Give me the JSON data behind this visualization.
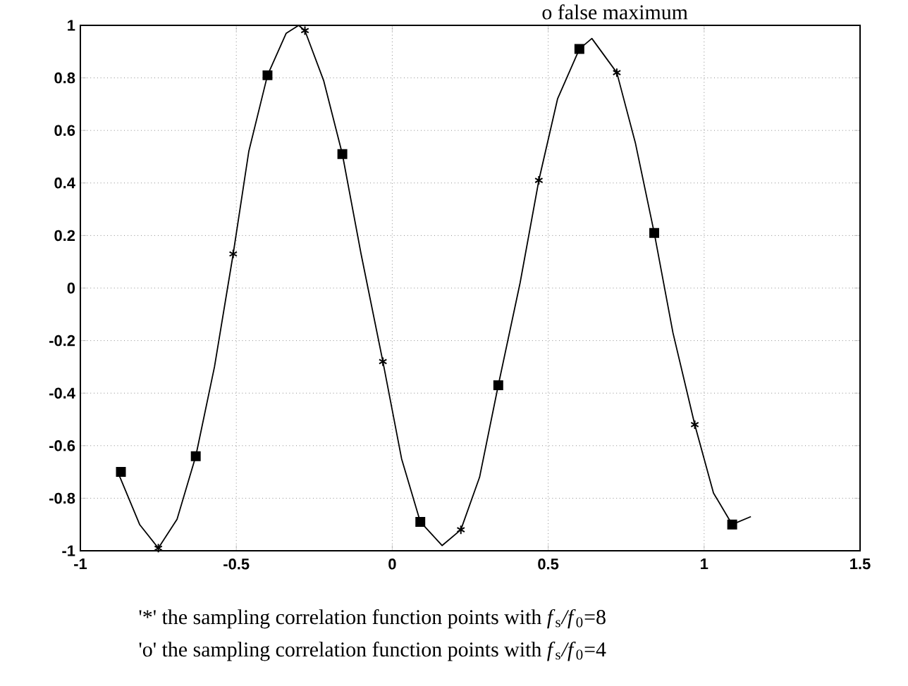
{
  "chart_data": {
    "type": "scatter",
    "xlim": [
      -1,
      1.5
    ],
    "ylim": [
      -1,
      1
    ],
    "xticks": [
      -1,
      -0.5,
      0,
      0.5,
      1,
      1.5
    ],
    "yticks": [
      -1,
      -0.8,
      -0.6,
      -0.4,
      -0.2,
      0,
      0.2,
      0.4,
      0.6,
      0.8,
      1
    ],
    "grid": true,
    "series": [
      {
        "type": "line",
        "color": "#000000",
        "marker": "none",
        "line_style": "solid",
        "x": [
          -0.88,
          -0.81,
          -0.75,
          -0.69,
          -0.63,
          -0.57,
          -0.51,
          -0.46,
          -0.4,
          -0.34,
          -0.3,
          -0.28,
          -0.22,
          -0.16,
          -0.1,
          -0.03,
          0.03,
          0.09,
          0.16,
          0.22,
          0.28,
          0.34,
          0.41,
          0.47,
          0.53,
          0.6,
          0.64,
          0.72,
          0.78,
          0.84,
          0.9,
          0.97,
          1.03,
          1.09,
          1.15
        ],
        "values": [
          -0.7,
          -0.9,
          -0.99,
          -0.88,
          -0.64,
          -0.3,
          0.13,
          0.52,
          0.81,
          0.97,
          1.0,
          0.98,
          0.79,
          0.51,
          0.13,
          -0.28,
          -0.65,
          -0.89,
          -0.98,
          -0.92,
          -0.72,
          -0.37,
          0.02,
          0.41,
          0.72,
          0.91,
          0.95,
          0.82,
          0.55,
          0.21,
          -0.17,
          -0.52,
          -0.78,
          -0.9,
          -0.87
        ]
      },
      {
        "color": "#000000",
        "marker": "cross",
        "x": [
          -0.75,
          -0.51,
          -0.28,
          -0.03,
          0.22,
          0.47,
          0.72,
          0.97
        ],
        "values": [
          -0.99,
          0.13,
          0.98,
          -0.28,
          -0.92,
          0.41,
          0.82,
          -0.52
        ]
      },
      {
        "color": "#000000",
        "marker": "square",
        "x": [
          -0.87,
          -0.63,
          -0.4,
          -0.16,
          0.09,
          0.34,
          0.6,
          0.84,
          1.09
        ],
        "values": [
          -0.7,
          -0.64,
          0.81,
          0.51,
          -0.89,
          -0.37,
          0.91,
          0.21,
          -0.9
        ]
      }
    ],
    "annotations": [
      "o false maximum",
      "'*' the sampling correlation function points with *f*$_{s}$*/f*$_{0}$=8",
      "'o' the sampling correlation function points with *f*$_{s}$*/f*$_{0}$=4"
    ]
  }
}
